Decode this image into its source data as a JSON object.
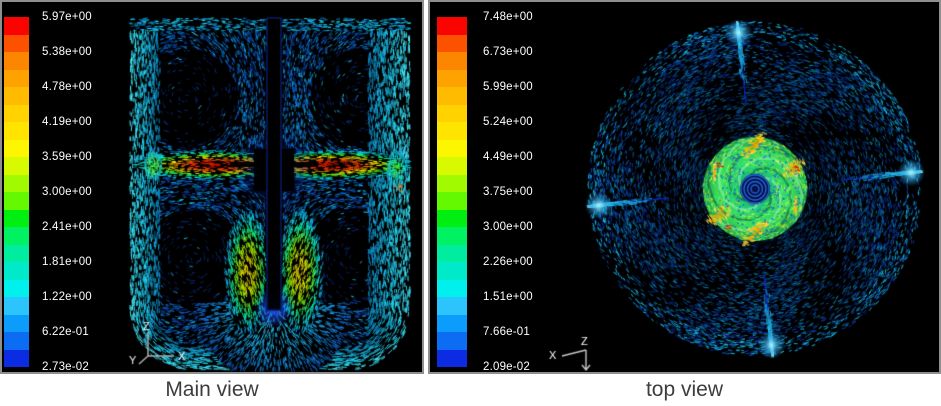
{
  "figure": {
    "colorbar_colors_top_to_bottom": [
      "#fa0400",
      "#fc5200",
      "#fd8600",
      "#fea200",
      "#ffbb00",
      "#ffd200",
      "#ffe400",
      "#fcf600",
      "#d8fa00",
      "#a2fa00",
      "#64f900",
      "#00ef10",
      "#00f262",
      "#00eda0",
      "#00e9c8",
      "#00f0ee",
      "#2cc4fc",
      "#0c9cfc",
      "#0c6cf2",
      "#0c2ce4"
    ],
    "panels": [
      {
        "name": "main-view",
        "caption": "Main view",
        "legend_values": [
          "5.97e+00",
          "5.38e+00",
          "4.78e+00",
          "4.19e+00",
          "3.59e+00",
          "3.00e+00",
          "2.41e+00",
          "1.81e+00",
          "1.22e+00",
          "6.22e-01",
          "2.73e-02"
        ],
        "triad": {
          "z": "Z",
          "y": "Y",
          "x": "X"
        }
      },
      {
        "name": "top-view",
        "caption": "top view",
        "legend_values": [
          "7.48e+00",
          "6.73e+00",
          "5.99e+00",
          "5.24e+00",
          "4.49e+00",
          "3.75e+00",
          "3.00e+00",
          "2.26e+00",
          "1.51e+00",
          "7.66e-01",
          "2.09e-02"
        ],
        "triad": {
          "x": "X",
          "z": "Z"
        }
      }
    ]
  },
  "chart_data": [
    {
      "type": "vector-field",
      "title": "Main view",
      "view": "vertical mid-plane (side) view of a baffled stirred tank, velocity vectors colored by magnitude",
      "colorbar": {
        "orientation": "vertical-left",
        "colormap": "rainbow blue-to-red, 20 discrete bands",
        "tick_labels": [
          "5.97e+00",
          "5.38e+00",
          "4.78e+00",
          "4.19e+00",
          "3.59e+00",
          "3.00e+00",
          "2.41e+00",
          "1.81e+00",
          "1.22e+00",
          "6.22e-01",
          "2.73e-02"
        ],
        "tick_values": [
          5.97,
          5.38,
          4.78,
          4.19,
          3.59,
          3.0,
          2.41,
          1.81,
          1.22,
          0.622,
          0.0273
        ],
        "min": 0.0273,
        "max": 5.97,
        "bands": 20
      },
      "axis_triad": [
        "Z up",
        "X right",
        "Y lower-left"
      ],
      "features": [
        "high-velocity horizontal impeller jets with red-orange cores at mid-height on both sides of the central shaft",
        "two large dark recirculation cores above the jets and two below",
        "green-yellow rising plumes flanking the shaft near the rounded tank bottom",
        "bright cyan boundary flow along side walls, top surface and curved bottom",
        "black central shaft and impeller hub",
        "cyan fan of vectors spreading below the shaft tip"
      ]
    },
    {
      "type": "vector-field",
      "title": "top view",
      "view": "horizontal (top) view of the same stirred tank, velocity vectors colored by magnitude",
      "colorbar": {
        "orientation": "vertical-left",
        "colormap": "rainbow blue-to-red, 20 discrete bands",
        "tick_labels": [
          "7.48e+00",
          "6.73e+00",
          "5.99e+00",
          "5.24e+00",
          "4.49e+00",
          "3.75e+00",
          "3.00e+00",
          "2.26e+00",
          "1.51e+00",
          "7.66e-01",
          "2.09e-02"
        ],
        "tick_values": [
          7.48,
          6.73,
          5.99,
          5.24,
          4.49,
          3.75,
          3.0,
          2.26,
          1.51,
          0.766,
          0.0209
        ],
        "min": 0.0209,
        "max": 7.48,
        "bands": 20
      },
      "axis_triad": [
        "X upper-left",
        "Z arrow pointing down"
      ],
      "features": [
        "central impeller disk of green swirling vectors with yellow-orange blade-tip patches and a few red specks",
        "dark-blue spiral vortex core at the shaft center",
        "wide annulus of tangential dark-blue/teal vectors filling the circular tank",
        "four bright cyan baffle streaks near the rim, slightly rotated from the cardinal directions"
      ]
    }
  ]
}
